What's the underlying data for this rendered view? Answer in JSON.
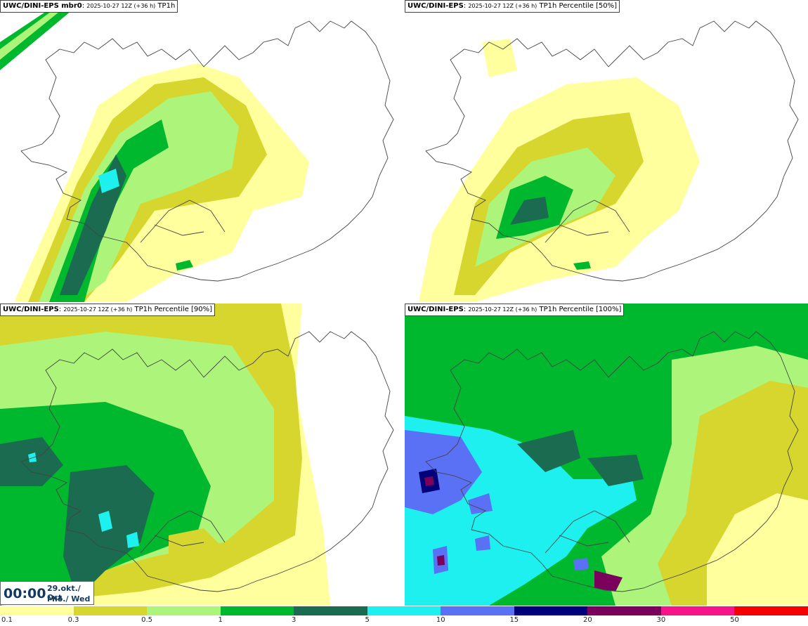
{
  "panels": [
    {
      "prefix": "UWC/DINI-EPS mbr0",
      "run": "2025-10-27 12Z (+36 h)",
      "field": "TP1h"
    },
    {
      "prefix": "UWC/DINI-EPS",
      "run": "2025-10-27 12Z (+36 h)",
      "field": "TP1h Percentile [50%]"
    },
    {
      "prefix": "UWC/DINI-EPS",
      "run": "2025-10-27 12Z (+36 h)",
      "field": "TP1h Percentile [90%]"
    },
    {
      "prefix": "UWC/DINI-EPS",
      "run": "2025-10-27 12Z (+36 h)",
      "field": "TP1h Percentile [100%]"
    }
  ],
  "time": {
    "clock": "00:00",
    "date_line1": "29.okt./ Oct",
    "date_line2": "Mið./ Wed"
  },
  "legend": {
    "labels": [
      "0.1",
      "0.3",
      "0.5",
      "1",
      "3",
      "5",
      "10",
      "15",
      "20",
      "30",
      "50"
    ],
    "colors": [
      "#ffff9e",
      "#d6d62e",
      "#acf57a",
      "#00b82e",
      "#1a6b4f",
      "#1ef0f0",
      "#5a70f5",
      "#00007a",
      "#7a005c",
      "#f5148a",
      "#f50000"
    ]
  }
}
